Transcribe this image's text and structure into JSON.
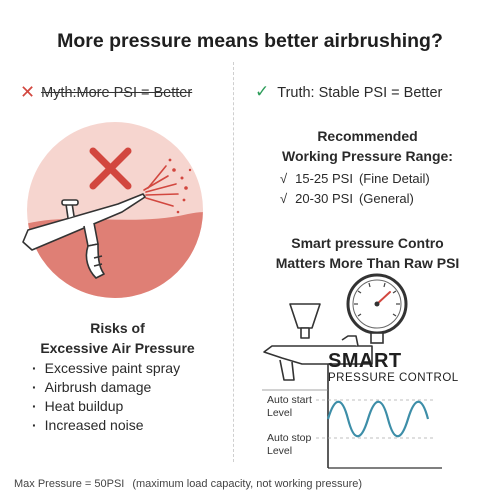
{
  "title": "More pressure means better airbrushing?",
  "myth": {
    "text": "Myth:More PSI = Better"
  },
  "truth": {
    "text": "Truth: Stable PSI = Better"
  },
  "recommended": {
    "heading_line1": "Recommended",
    "heading_line2": "Working Pressure Range:",
    "items": [
      {
        "check": "√",
        "range": "15-25 PSI",
        "note": "(Fine Detail)"
      },
      {
        "check": "√",
        "range": "20-30 PSI",
        "note": "(General)"
      }
    ]
  },
  "smart_section": {
    "heading_line1": "Smart pressure Contro",
    "heading_line2": "Matters More Than Raw PSI",
    "logo": "SMART",
    "logo_sub": "PRESSURE CONTROL",
    "auto_start_label": "Auto start",
    "auto_start_sub": "Level",
    "auto_stop_label": "Auto stop",
    "auto_stop_sub": "Level"
  },
  "risks": {
    "heading_line1": "Risks of",
    "heading_line2": "Excessive Air Pressure",
    "items": [
      "Excessive paint spray",
      "Airbrush damage",
      "Heat buildup",
      "Increased noise"
    ]
  },
  "footer": {
    "text": "Max Pressure = 50PSI",
    "note": "(maximum load capacity, not working pressure)"
  },
  "colors": {
    "red": "#d2473f",
    "green": "#2e9d5a",
    "wave": "#3d8ea8",
    "pink": "#f6d5cf",
    "gauge_ring": "#333333"
  },
  "icons": [
    "x-mark-icon",
    "check-mark-icon",
    "airbrush-icon",
    "spray-icon",
    "pressure-gauge-icon",
    "sine-wave-icon"
  ]
}
